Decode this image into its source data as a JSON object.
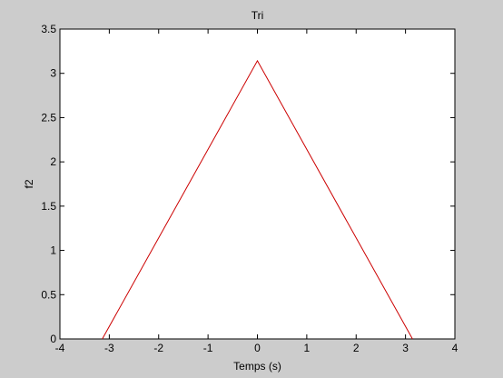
{
  "figure": {
    "background": "#cccccc"
  },
  "chart_data": {
    "type": "line",
    "title": "Tri",
    "xlabel": "Temps (s)",
    "ylabel": "f2",
    "xlim": [
      -4,
      4
    ],
    "ylim": [
      0,
      3.5
    ],
    "grid": false,
    "xticks": [
      -4,
      -3,
      -2,
      -1,
      0,
      1,
      2,
      3,
      4
    ],
    "xtick_labels": [
      "-4",
      "-3",
      "-2",
      "-1",
      "0",
      "1",
      "2",
      "3",
      "4"
    ],
    "yticks": [
      0,
      0.5,
      1,
      1.5,
      2,
      2.5,
      3,
      3.5
    ],
    "ytick_labels": [
      "0",
      "0.5",
      "1",
      "1.5",
      "2",
      "2.5",
      "3",
      "3.5"
    ],
    "series": [
      {
        "name": "f2",
        "color": "#cc0000",
        "x": [
          -3.1416,
          0,
          3.1416
        ],
        "y": [
          0,
          3.1416,
          0
        ]
      }
    ],
    "axes_background": "#ffffff",
    "axes_color": "#000000"
  }
}
